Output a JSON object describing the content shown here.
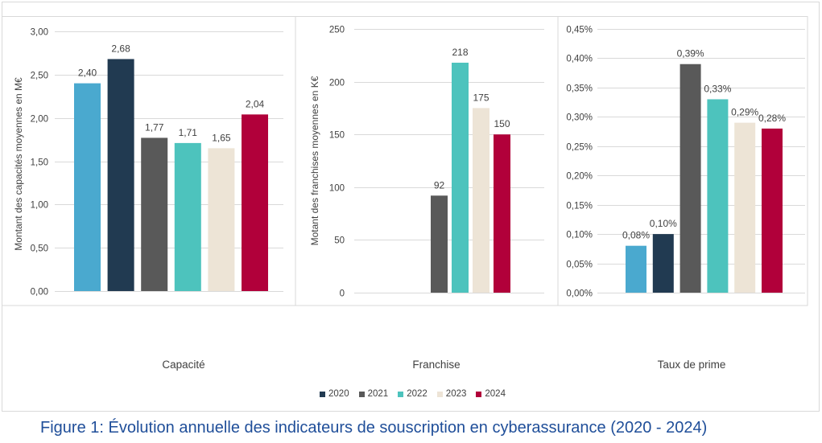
{
  "caption": "Figure 1: Évolution annuelle des indicateurs de souscription en cyberassurance (2020 - 2024)",
  "colors": {
    "gridline": "#d9d9d9",
    "caption": "#1f4e99"
  },
  "legend": {
    "placement": "bottom",
    "items": [
      {
        "label": "2020",
        "color": "#213a51"
      },
      {
        "label": "2021",
        "color": "#595959"
      },
      {
        "label": "2022",
        "color": "#4dc3bd"
      },
      {
        "label": "2023",
        "color": "#ede4d6"
      },
      {
        "label": "2024",
        "color": "#b1003a"
      }
    ]
  },
  "chart_data": [
    {
      "type": "bar",
      "categories": [
        "Capacité"
      ],
      "ylabel": "Montant des capacités moyennes en M€",
      "ylim": [
        0,
        3
      ],
      "yticks": [
        0,
        0.5,
        1,
        1.5,
        2,
        2.5,
        3
      ],
      "ytick_labels": [
        "0,00",
        "0,50",
        "1,00",
        "1,50",
        "2,00",
        "2,50",
        "3,00"
      ],
      "grid": true,
      "series": [
        {
          "color": "#4aa9cf",
          "values": [
            2.4
          ],
          "data_labels": [
            "2,40"
          ]
        },
        {
          "name": "2020",
          "color": "#213a51",
          "values": [
            2.68
          ],
          "data_labels": [
            "2,68"
          ]
        },
        {
          "name": "2021",
          "color": "#595959",
          "values": [
            1.77
          ],
          "data_labels": [
            "1,77"
          ]
        },
        {
          "name": "2022",
          "color": "#4dc3bd",
          "values": [
            1.71
          ],
          "data_labels": [
            "1,71"
          ]
        },
        {
          "name": "2023",
          "color": "#ede4d6",
          "values": [
            1.65
          ],
          "data_labels": [
            "1,65"
          ]
        },
        {
          "name": "2024",
          "color": "#b1003a",
          "values": [
            2.04
          ],
          "data_labels": [
            "2,04"
          ]
        }
      ]
    },
    {
      "type": "bar",
      "categories": [
        "Franchise"
      ],
      "ylabel": "Motant des franchises moyennes en K€",
      "ylim": [
        0,
        250
      ],
      "yticks": [
        0,
        50,
        100,
        150,
        200,
        250
      ],
      "ytick_labels": [
        "0",
        "50",
        "100",
        "150",
        "200",
        "250"
      ],
      "grid": true,
      "series": [
        {
          "color": "#4aa9cf",
          "values": [
            null
          ],
          "data_labels": [
            null
          ]
        },
        {
          "name": "2020",
          "color": "#213a51",
          "values": [
            null
          ],
          "data_labels": [
            null
          ]
        },
        {
          "name": "2021",
          "color": "#595959",
          "values": [
            92
          ],
          "data_labels": [
            "92"
          ]
        },
        {
          "name": "2022",
          "color": "#4dc3bd",
          "values": [
            218
          ],
          "data_labels": [
            "218"
          ]
        },
        {
          "name": "2023",
          "color": "#ede4d6",
          "values": [
            175
          ],
          "data_labels": [
            "175"
          ]
        },
        {
          "name": "2024",
          "color": "#b1003a",
          "values": [
            150
          ],
          "data_labels": [
            "150"
          ]
        }
      ]
    },
    {
      "type": "bar",
      "categories": [
        "Taux de prime"
      ],
      "ylim": [
        0,
        0.45
      ],
      "yticks": [
        0,
        0.05,
        0.1,
        0.15,
        0.2,
        0.25,
        0.3,
        0.35,
        0.4,
        0.45
      ],
      "ytick_labels": [
        "0,00%",
        "0,05%",
        "0,10%",
        "0,15%",
        "0,20%",
        "0,25%",
        "0,30%",
        "0,35%",
        "0,40%",
        "0,45%"
      ],
      "grid": true,
      "series": [
        {
          "color": "#4aa9cf",
          "values": [
            0.08
          ],
          "data_labels": [
            "0,08%"
          ]
        },
        {
          "name": "2020",
          "color": "#213a51",
          "values": [
            0.1
          ],
          "data_labels": [
            "0,10%"
          ]
        },
        {
          "name": "2021",
          "color": "#595959",
          "values": [
            0.39
          ],
          "data_labels": [
            "0,39%"
          ]
        },
        {
          "name": "2022",
          "color": "#4dc3bd",
          "values": [
            0.33
          ],
          "data_labels": [
            "0,33%"
          ]
        },
        {
          "name": "2023",
          "color": "#ede4d6",
          "values": [
            0.29
          ],
          "data_labels": [
            "0,29%"
          ]
        },
        {
          "name": "2024",
          "color": "#b1003a",
          "values": [
            0.28
          ],
          "data_labels": [
            "0,28%"
          ]
        }
      ]
    }
  ]
}
